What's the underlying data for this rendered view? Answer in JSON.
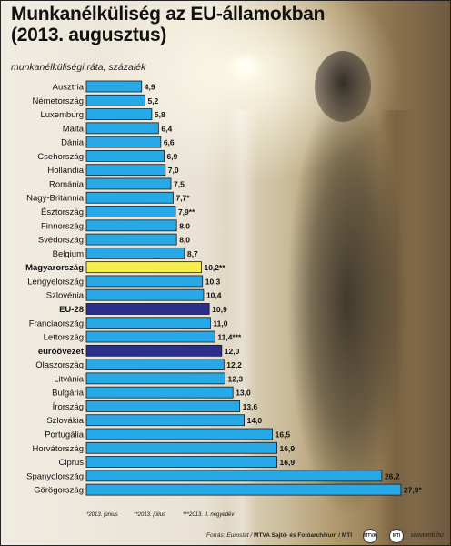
{
  "title": "Munkanélküliség az EU-államokban\n(2013. augusztus)",
  "subtitle": "munkanélküliségi ráta, százalék",
  "colors": {
    "bar": "#26a9e6",
    "hungary": "#f6ee4c",
    "eu": "#2b2f8c",
    "bar_stroke": "#1b1b1b"
  },
  "chart_data": {
    "type": "bar",
    "orientation": "horizontal",
    "categories": [
      "Ausztria",
      "Németország",
      "Luxemburg",
      "Málta",
      "Dánia",
      "Csehország",
      "Hollandia",
      "Románia",
      "Nagy-Britannia",
      "Észtország",
      "Finnország",
      "Svédország",
      "Belgium",
      "Magyarország",
      "Lengyelország",
      "Szlovénia",
      "EU-28",
      "Franciaország",
      "Lettország",
      "euróövezet",
      "Olaszország",
      "Litvánia",
      "Bulgária",
      "Írország",
      "Szlovákia",
      "Portugália",
      "Horvátország",
      "Ciprus",
      "Spanyolország",
      "Görögország"
    ],
    "values": [
      4.9,
      5.2,
      5.8,
      6.4,
      6.6,
      6.9,
      7.0,
      7.5,
      7.7,
      7.9,
      8.0,
      8.0,
      8.7,
      10.2,
      10.3,
      10.4,
      10.9,
      11.0,
      11.4,
      12.0,
      12.2,
      12.3,
      13.0,
      13.6,
      14.0,
      16.5,
      16.9,
      16.9,
      26.2,
      27.9
    ],
    "value_labels": [
      "4,9",
      "5,2",
      "5,8",
      "6,4",
      "6,6",
      "6,9",
      "7,0",
      "7,5",
      "7,7*",
      "7,9**",
      "8,0",
      "8,0",
      "8,7",
      "10,2**",
      "10,3",
      "10,4",
      "10,9",
      "11,0",
      "11,4***",
      "12,0",
      "12,2",
      "12,3",
      "13,0",
      "13,6",
      "14,0",
      "16,5",
      "16,9",
      "16,9",
      "26,2",
      "27,9*"
    ],
    "highlight": {
      "Magyarország": "hungary",
      "EU-28": "eu",
      "euróövezet": "eu"
    },
    "bold_labels": [
      "Magyarország",
      "EU-28",
      "euróövezet"
    ],
    "xlim": [
      0,
      28
    ],
    "footnotes": [
      "*2013. június",
      "**2013. július",
      "***2013. II. negyedév"
    ]
  },
  "footer": {
    "source_prefix": "Forrás: Eurostat / ",
    "source_bold": "MTVA Sajtó- és Fotóarchívum / MTI",
    "url": "www.mti.hu",
    "logo1": "MTVA",
    "logo2": "MTI"
  }
}
